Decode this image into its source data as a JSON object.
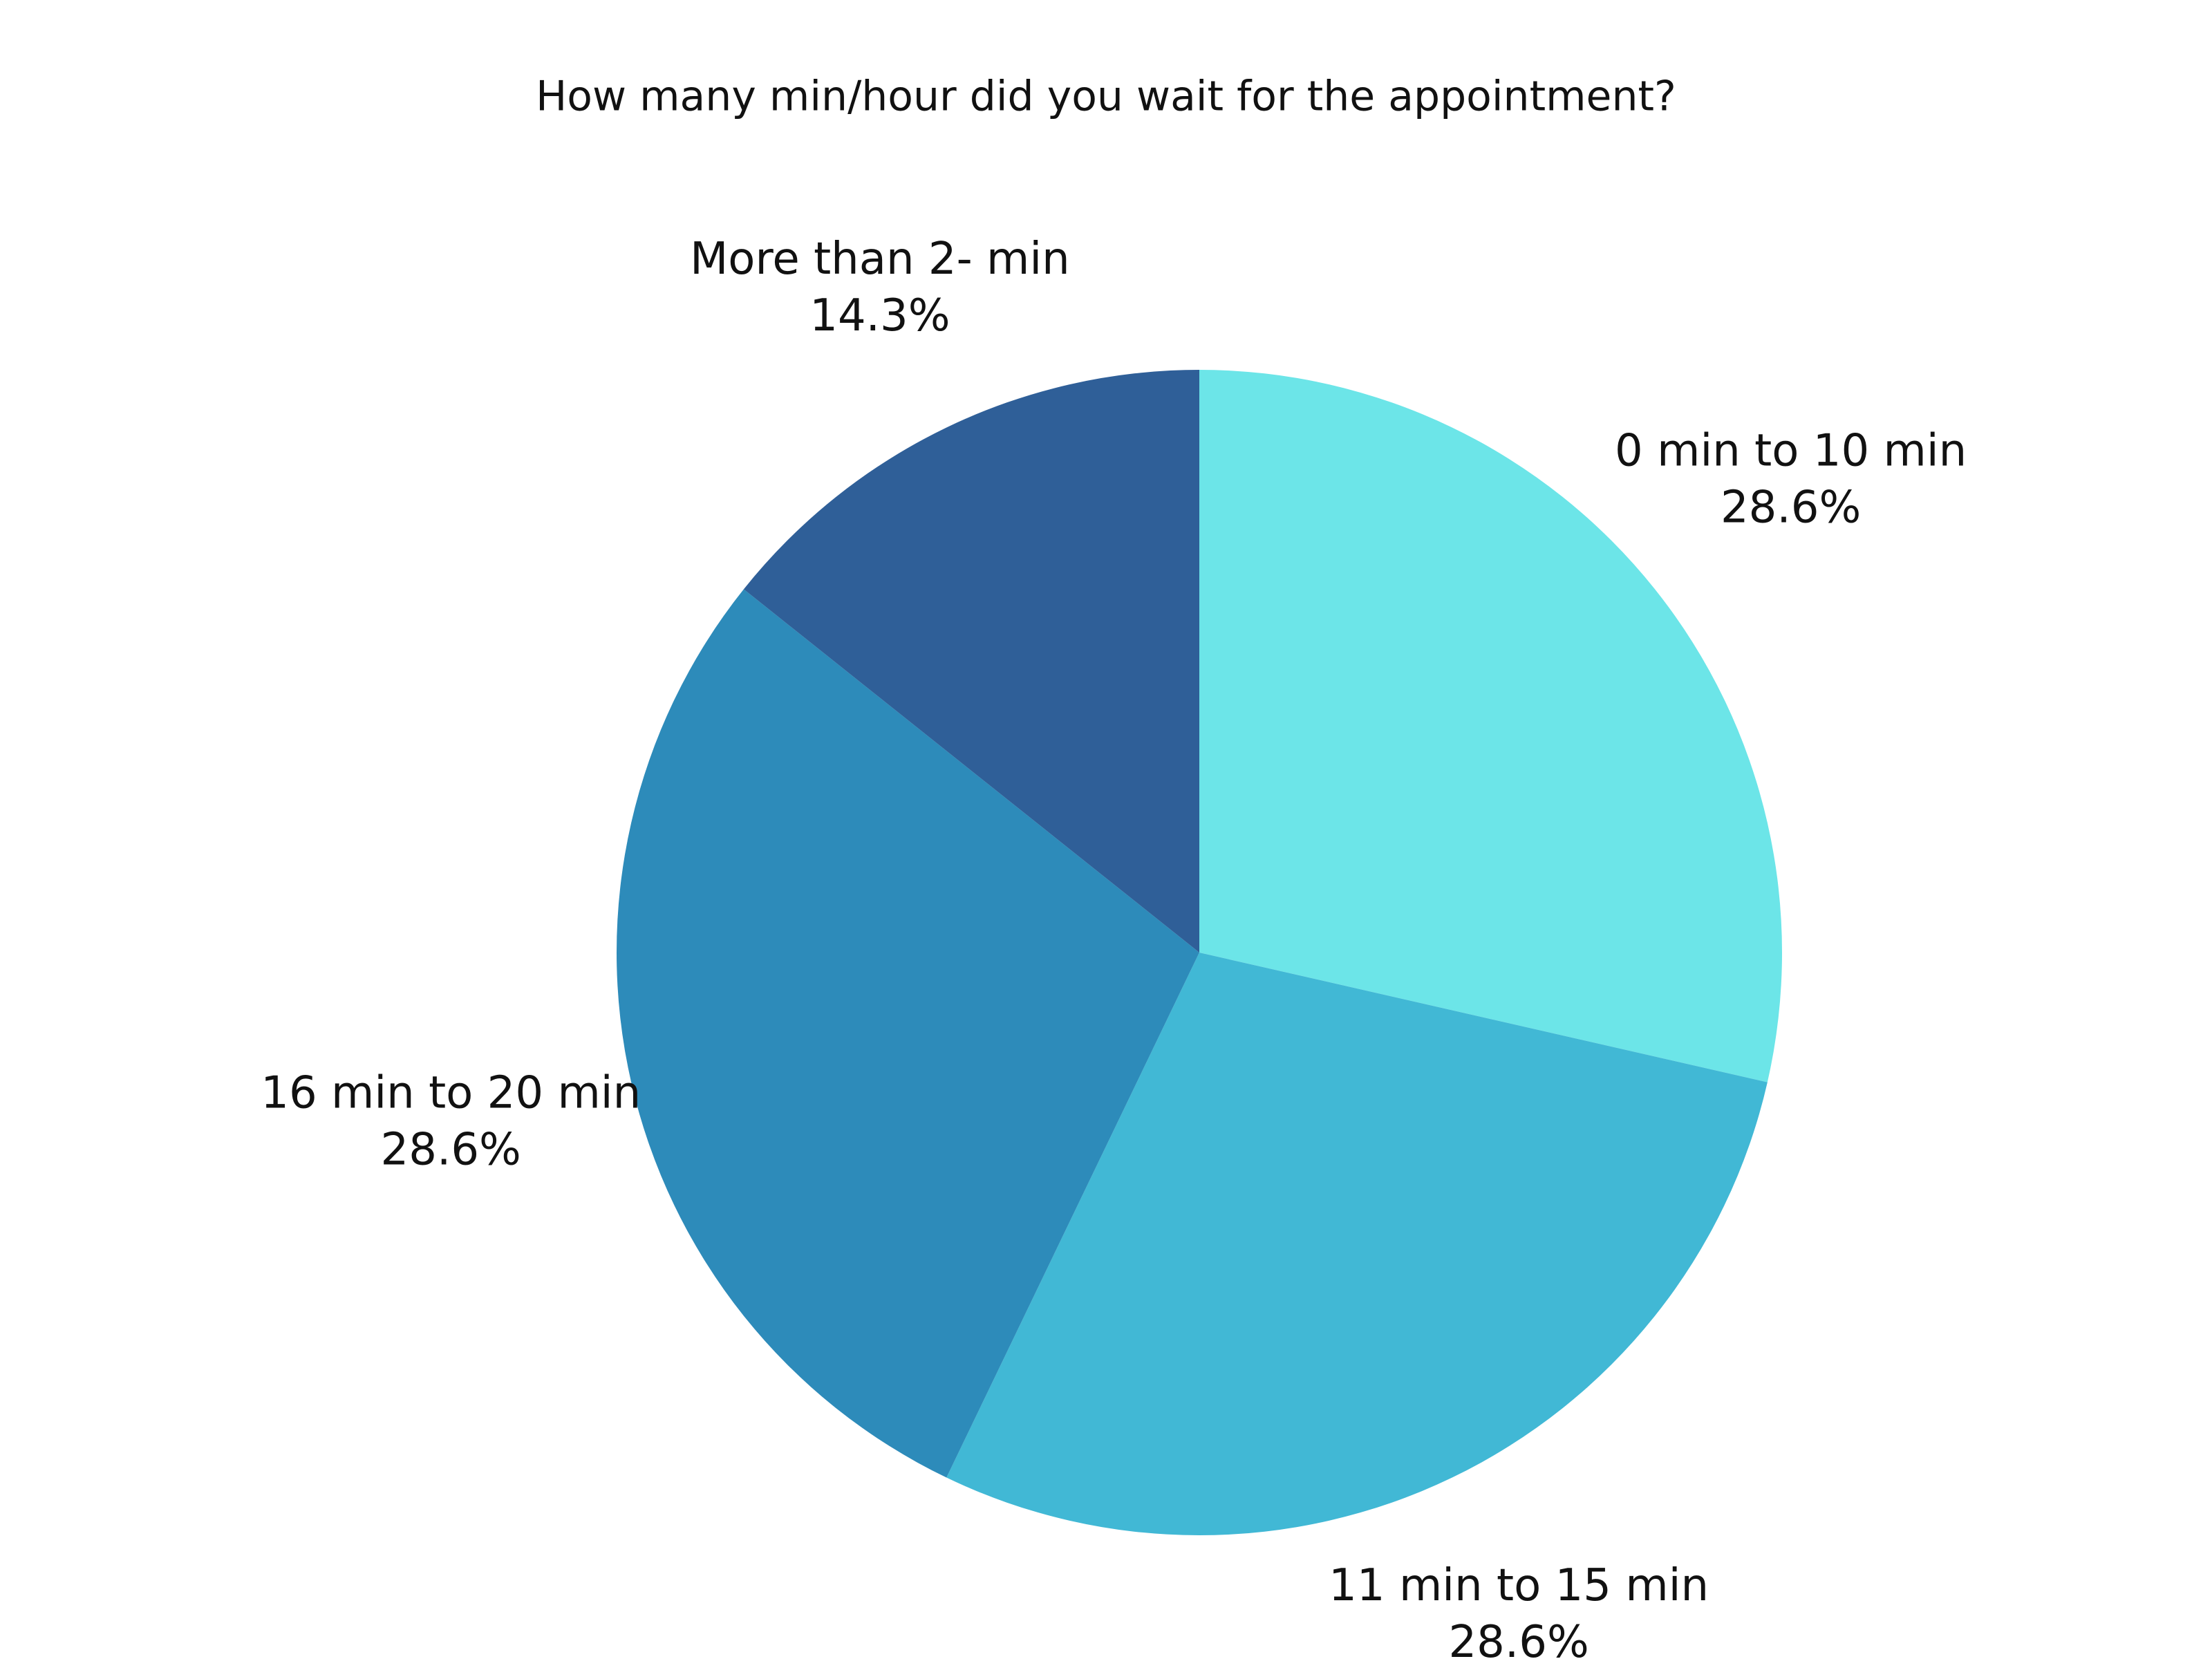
{
  "chart_data": {
    "type": "pie",
    "title": "How many min/hour did you wait for the appointment?",
    "categories": [
      "0 min to 10 min",
      "11 min to 15 min",
      "16 min to 20 min",
      "More than 2- min"
    ],
    "values": [
      28.6,
      28.6,
      28.6,
      14.3
    ],
    "value_labels": [
      "28.6%",
      "28.6%",
      "28.6%",
      "14.3%"
    ],
    "colors": [
      "#6ce5e8",
      "#41b8d5",
      "#2d8bba",
      "#2f5f98"
    ]
  }
}
